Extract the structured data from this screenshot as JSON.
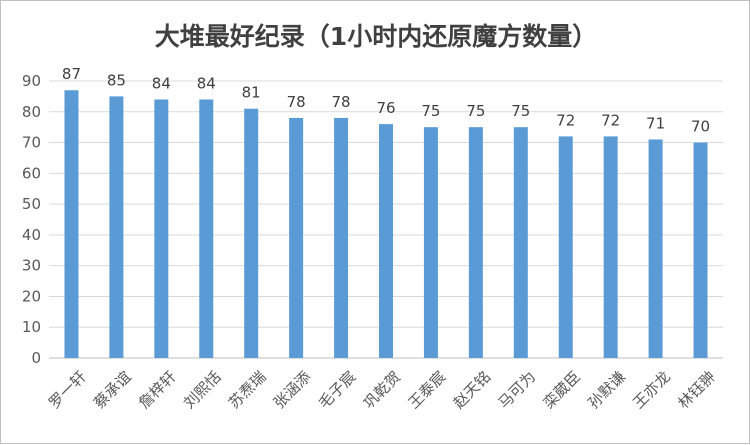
{
  "chart_data": {
    "type": "bar",
    "title": "大堆最好纪录（1小时内还原魔方数量）",
    "xlabel": "",
    "ylabel": "",
    "ylim": [
      0,
      90
    ],
    "yticks": [
      0,
      10,
      20,
      30,
      40,
      50,
      60,
      70,
      80,
      90
    ],
    "grid": true,
    "legend": "none",
    "bar_color": "#5b9bd5",
    "categories": [
      "罗一轩",
      "蔡承谊",
      "詹梓轩",
      "刘熙恬",
      "苏焘瑞",
      "张涵添",
      "毛子宸",
      "巩乾贺",
      "王泰宸",
      "赵天铭",
      "马可为",
      "栾葳臣",
      "孙默谦",
      "王亦龙",
      "林钰翀"
    ],
    "values": [
      87,
      85,
      84,
      84,
      81,
      78,
      78,
      76,
      75,
      75,
      75,
      72,
      72,
      71,
      70
    ]
  }
}
